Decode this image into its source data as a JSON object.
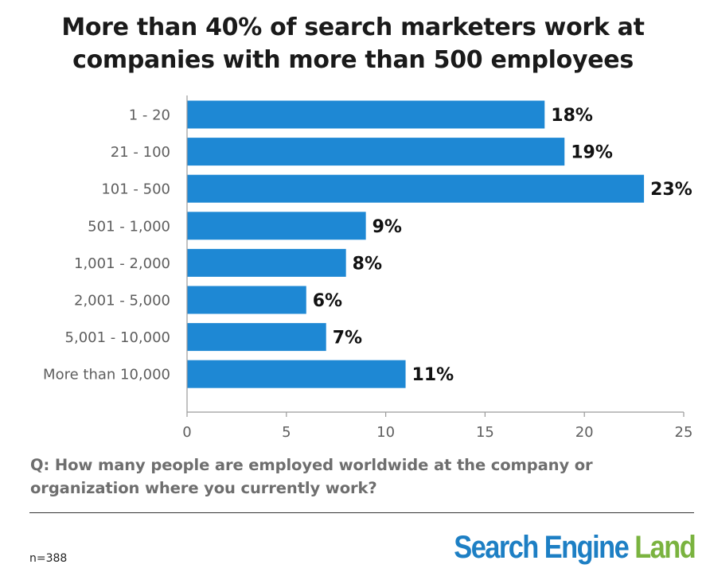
{
  "title_lines": [
    "More than 40% of search marketers work at",
    "companies with more than 500 employees"
  ],
  "question_lines": [
    "Q: How many people are employed worldwide at the company or",
    "organization where you currently work?"
  ],
  "sample_size": "n=388",
  "logo": {
    "word1": "Search",
    "word2": "Engine",
    "word3": "Land"
  },
  "colors": {
    "bar": "#1e88d4",
    "axis": "#9a9a9a",
    "label": "#5e5e5e",
    "value_label": "#111111",
    "logo_blue": "#1d7fc4",
    "logo_green": "#7ab33f"
  },
  "chart_data": {
    "type": "bar",
    "orientation": "horizontal",
    "categories": [
      "1 - 20",
      "21 - 100",
      "101 - 500",
      "501 - 1,000",
      "1,001 - 2,000",
      "2,001 - 5,000",
      "5,001 - 10,000",
      "More than 10,000"
    ],
    "values": [
      18,
      19,
      23,
      9,
      8,
      6,
      7,
      11
    ],
    "value_labels": [
      "18%",
      "19%",
      "23%",
      "9%",
      "8%",
      "6%",
      "7%",
      "11%"
    ],
    "xlim": [
      0,
      25
    ],
    "xticks": [
      0,
      5,
      10,
      15,
      20,
      25
    ],
    "xtick_labels": [
      "0",
      "5",
      "10",
      "15",
      "20",
      "25"
    ],
    "grid": false,
    "legend": "none"
  }
}
